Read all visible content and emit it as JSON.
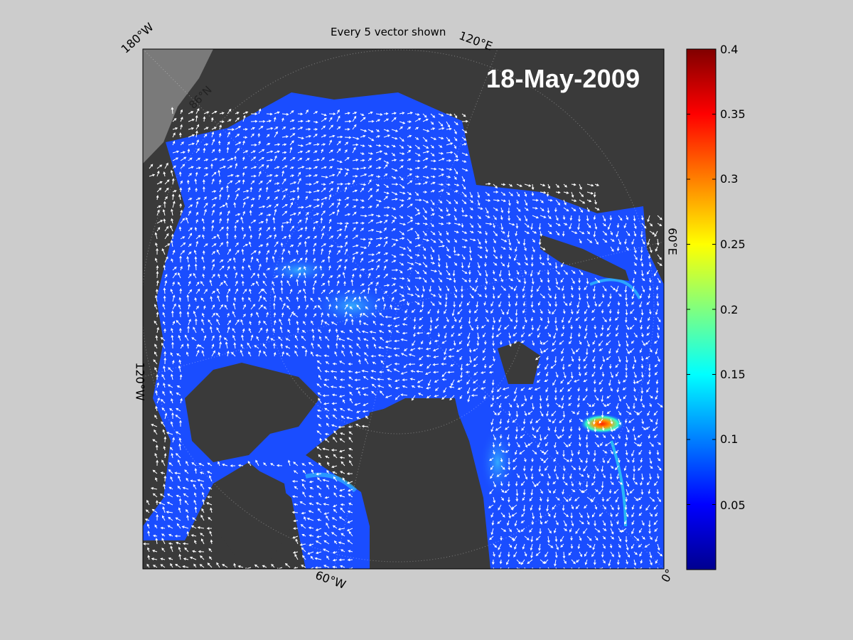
{
  "title": "Every 5 vector shown",
  "date": "18-May-2009",
  "longitude_labels": {
    "w180": "180°W",
    "e120": "120°E",
    "e60": "60°E",
    "w120": "120°W",
    "w60": "60°W",
    "zero": "0°"
  },
  "latitude_label": "86°N",
  "colorbar": {
    "colormap": "jet",
    "min": 0,
    "max": 0.4,
    "ticks": [
      "0.4",
      "0.35",
      "0.3",
      "0.25",
      "0.2",
      "0.15",
      "0.1",
      "0.05"
    ],
    "tick_values": [
      0.4,
      0.35,
      0.3,
      0.25,
      0.2,
      0.15,
      0.1,
      0.05
    ]
  },
  "colors": {
    "figure_background": "#cccccc",
    "land": "#3a3a3a",
    "ice_field": "#1a4dff",
    "vectors": "#ffffff",
    "highlight": "#ff3300"
  }
}
